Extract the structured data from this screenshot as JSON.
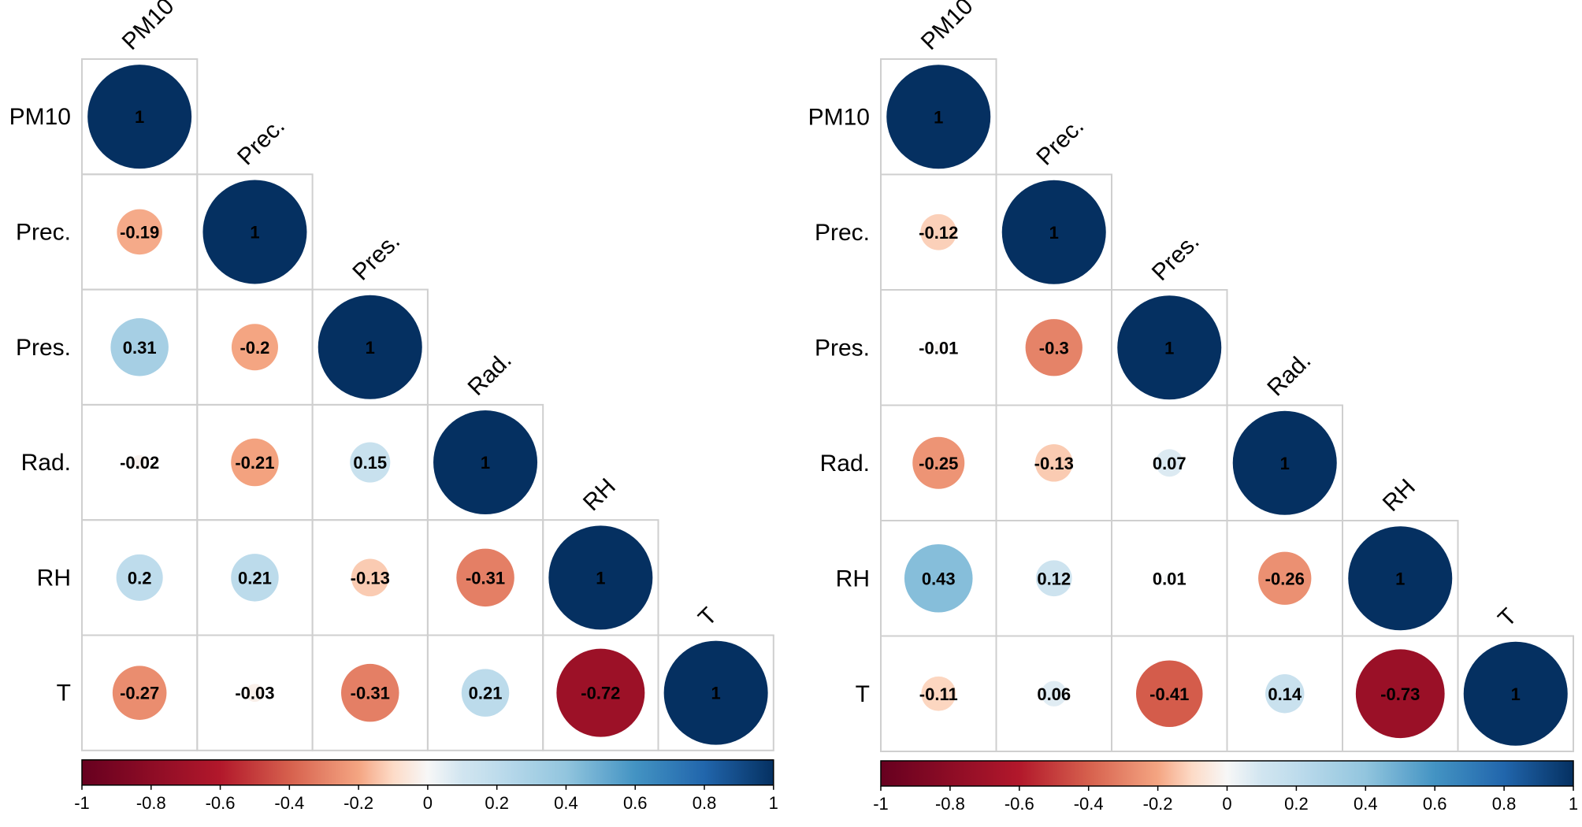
{
  "chart_data": [
    {
      "type": "heatmap",
      "subtype": "correlation-circle-lower-triangle",
      "variables": [
        "PM10",
        "Prec.",
        "Pres.",
        "Rad.",
        "RH",
        "T"
      ],
      "matrix": [
        [
          1
        ],
        [
          -0.19,
          1
        ],
        [
          0.31,
          -0.2,
          1
        ],
        [
          -0.02,
          -0.21,
          0.15,
          1
        ],
        [
          0.2,
          0.21,
          -0.13,
          -0.31,
          1
        ],
        [
          -0.27,
          -0.03,
          -0.31,
          0.21,
          -0.72,
          1
        ]
      ],
      "value_labels": [
        [
          "1"
        ],
        [
          "-0.19",
          "1"
        ],
        [
          "0.31",
          "-0.2",
          "1"
        ],
        [
          "-0.02",
          "-0.21",
          "0.15",
          "1"
        ],
        [
          "0.2",
          "0.21",
          "-0.13",
          "-0.31",
          "1"
        ],
        [
          "-0.27",
          "-0.03",
          "-0.31",
          "0.21",
          "-0.72",
          "1"
        ]
      ],
      "colorbar": {
        "range": [
          -1,
          1
        ],
        "tick_labels": [
          "-1",
          "-0.8",
          "-0.6",
          "-0.4",
          "-0.2",
          "0",
          "0.2",
          "0.4",
          "0.6",
          "0.8",
          "1"
        ]
      }
    },
    {
      "type": "heatmap",
      "subtype": "correlation-circle-lower-triangle",
      "variables": [
        "PM10",
        "Prec.",
        "Pres.",
        "Rad.",
        "RH",
        "T"
      ],
      "matrix": [
        [
          1
        ],
        [
          -0.12,
          1
        ],
        [
          -0.01,
          -0.3,
          1
        ],
        [
          -0.25,
          -0.13,
          0.07,
          1
        ],
        [
          0.43,
          0.12,
          0.01,
          -0.26,
          1
        ],
        [
          -0.11,
          0.06,
          -0.41,
          0.14,
          -0.73,
          1
        ]
      ],
      "value_labels": [
        [
          "1"
        ],
        [
          "-0.12",
          "1"
        ],
        [
          "-0.01",
          "-0.3",
          "1"
        ],
        [
          "-0.25",
          "-0.13",
          "0.07",
          "1"
        ],
        [
          "0.43",
          "0.12",
          "0.01",
          "-0.26",
          "1"
        ],
        [
          "-0.11",
          "0.06",
          "-0.41",
          "0.14",
          "-0.73",
          "1"
        ]
      ],
      "colorbar": {
        "range": [
          -1,
          1
        ],
        "tick_labels": [
          "-1",
          "-0.8",
          "-0.6",
          "-0.4",
          "-0.2",
          "0",
          "0.2",
          "0.4",
          "0.6",
          "0.8",
          "1"
        ]
      }
    }
  ],
  "colors": {
    "neg_strong": "#67001f",
    "neg_mid": "#d6604d",
    "neg_light": "#fddbc7",
    "neutral": "#f7f7f7",
    "pos_light": "#d1e5f0",
    "pos_mid": "#4393c3",
    "pos_strong": "#053061",
    "grid": "#cfcfcf"
  }
}
